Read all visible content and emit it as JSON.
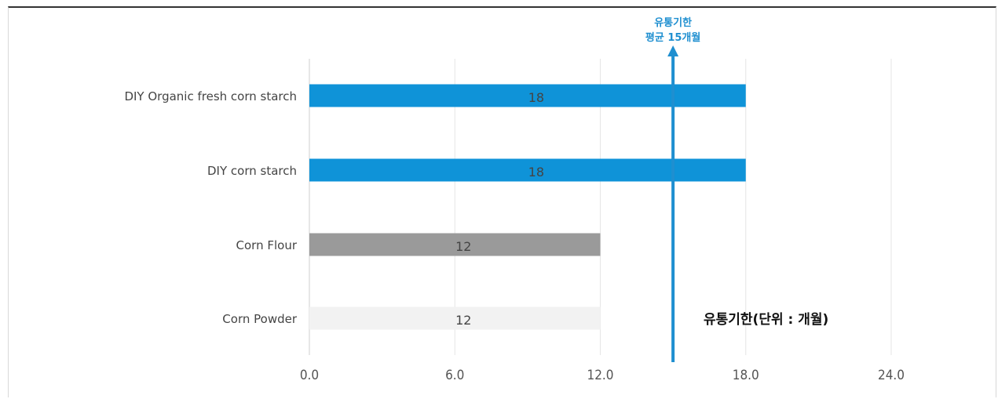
{
  "chart_data": {
    "type": "bar",
    "orientation": "horizontal",
    "categories": [
      "DIY Organic fresh corn starch",
      "DIY corn starch",
      "Corn Flour",
      "Corn Powder"
    ],
    "values": [
      18,
      18,
      12,
      12
    ],
    "data_labels": [
      "18",
      "18",
      "12",
      "12"
    ],
    "bar_colors": [
      "#0f93d8",
      "#0f93d8",
      "#9a9a9a",
      "#f2f2f2"
    ],
    "xlim": [
      0,
      24
    ],
    "x_ticks": [
      0,
      6,
      12,
      18,
      24
    ],
    "x_tick_labels": [
      "0.0",
      "6.0",
      "12.0",
      "18.0",
      "24.0"
    ],
    "grid": true,
    "reference_line": {
      "value": 15,
      "color": "#1f8fd0",
      "label_line1": "유통기한",
      "label_line2": "평균 15개월"
    },
    "unit_annotation": "유통기한(단위 : 개월)"
  }
}
